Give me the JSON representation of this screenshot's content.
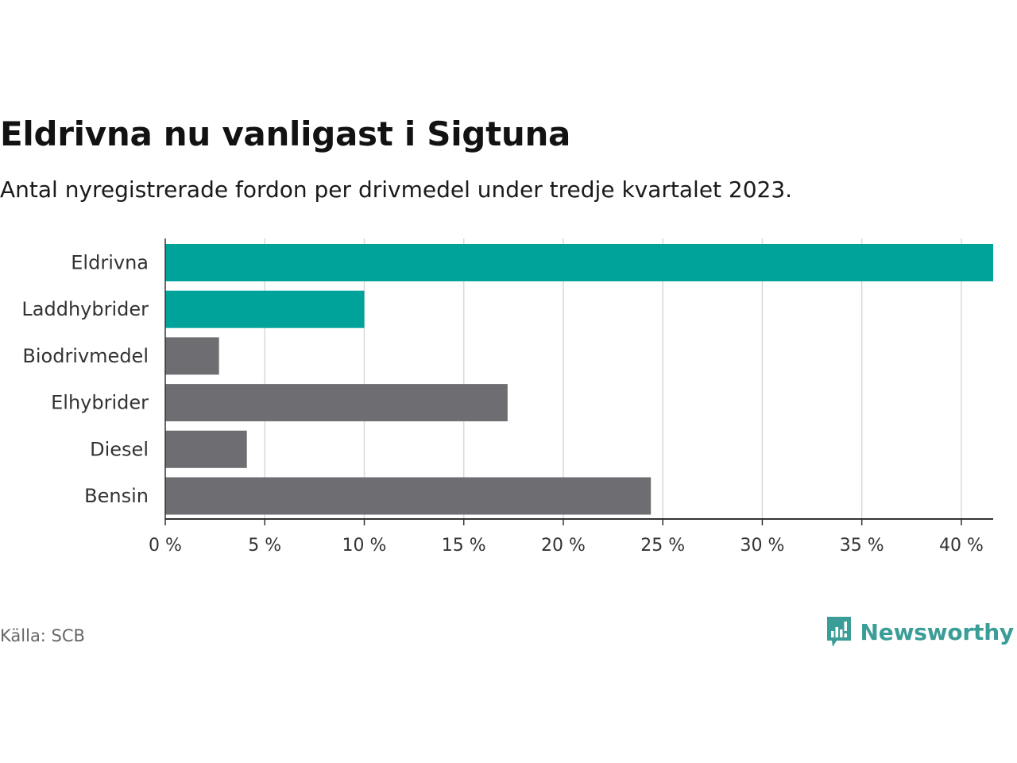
{
  "header": {
    "title": "Eldrivna nu vanligast i Sigtuna",
    "subtitle": "Antal nyregistrerade fordon per drivmedel under tredje kvartalet 2023."
  },
  "footer": {
    "source": "Källa: SCB",
    "brand": "Newsworthy"
  },
  "colors": {
    "highlight": "#00a39a",
    "default": "#6e6d72",
    "grid": "#d9d9d9",
    "axis": "#333333",
    "brand": "#3a9d97"
  },
  "chart_data": {
    "type": "bar",
    "orientation": "horizontal",
    "title": "Eldrivna nu vanligast i Sigtuna",
    "subtitle": "Antal nyregistrerade fordon per drivmedel under tredje kvartalet 2023.",
    "xlabel": "",
    "ylabel": "",
    "categories": [
      "Eldrivna",
      "Laddhybrider",
      "Biodrivmedel",
      "Elhybrider",
      "Diesel",
      "Bensin"
    ],
    "values": [
      41.6,
      10.0,
      2.7,
      17.2,
      4.1,
      24.4
    ],
    "highlighted": [
      true,
      true,
      false,
      false,
      false,
      false
    ],
    "xlim": [
      0,
      41.6
    ],
    "ticks": [
      0,
      5,
      10,
      15,
      20,
      25,
      30,
      35,
      40
    ],
    "tick_labels": [
      "0 %",
      "5 %",
      "10 %",
      "15 %",
      "20 %",
      "25 %",
      "30 %",
      "35 %",
      "40 %"
    ],
    "grid": true,
    "legend": "none"
  }
}
